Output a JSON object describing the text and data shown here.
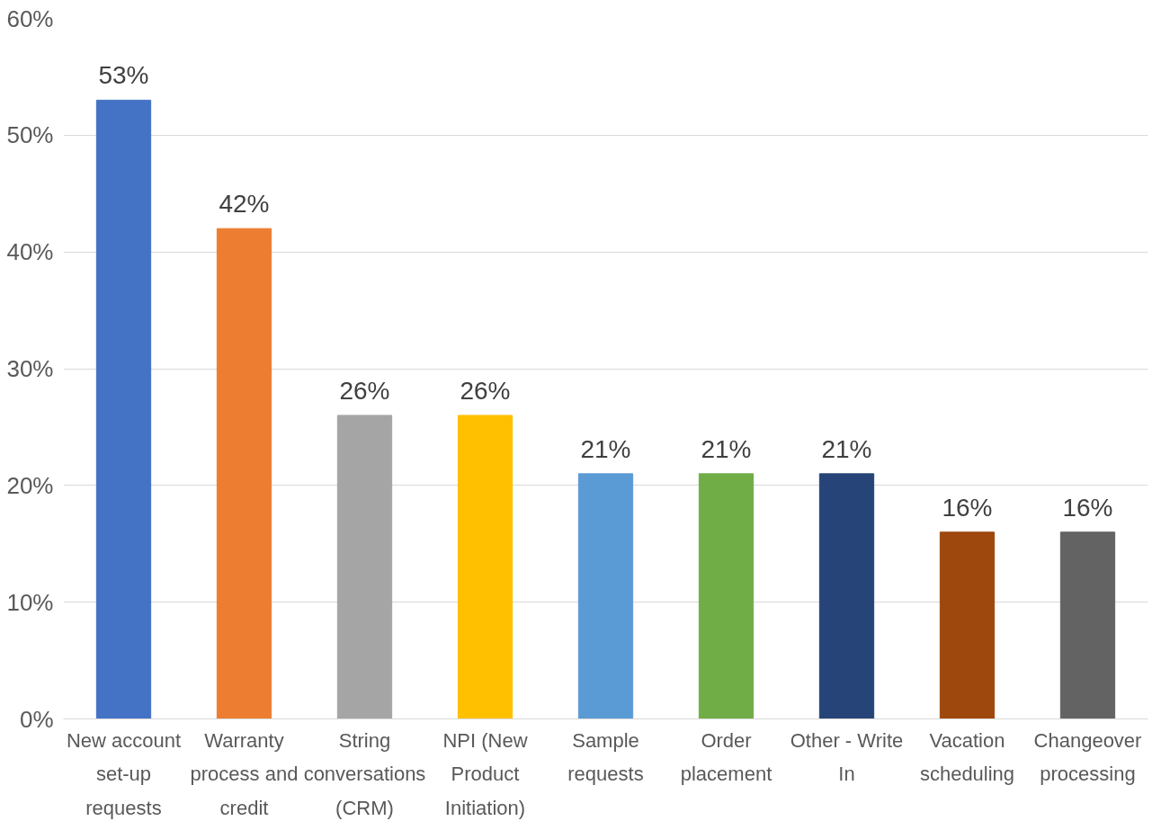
{
  "chart_data": {
    "type": "bar",
    "categories": [
      "New account set-up requests",
      "Warranty process and credit",
      "String conversations (CRM)",
      "NPI (New Product Initiation)",
      "Sample requests",
      "Order placement",
      "Other - Write In",
      "Vacation scheduling",
      "Changeover processing"
    ],
    "values": [
      53,
      42,
      26,
      26,
      21,
      21,
      21,
      16,
      16
    ],
    "colors": [
      "#4472c4",
      "#ed7d31",
      "#a5a5a5",
      "#ffc000",
      "#5b9bd5",
      "#70ad47",
      "#264478",
      "#9e480e",
      "#636363"
    ],
    "ylim": [
      0,
      60
    ],
    "yticks": [
      {
        "value": 0,
        "label": "0%"
      },
      {
        "value": 10,
        "label": "10%"
      },
      {
        "value": 20,
        "label": "20%"
      },
      {
        "value": 30,
        "label": "30%"
      },
      {
        "value": 40,
        "label": "40%"
      },
      {
        "value": 50,
        "label": "50%"
      },
      {
        "value": 60,
        "label": "60%"
      }
    ],
    "grid": "y",
    "data_labels": true,
    "value_labels": [
      "53%",
      "42%",
      "26%",
      "26%",
      "21%",
      "21%",
      "21%",
      "16%",
      "16%"
    ]
  }
}
